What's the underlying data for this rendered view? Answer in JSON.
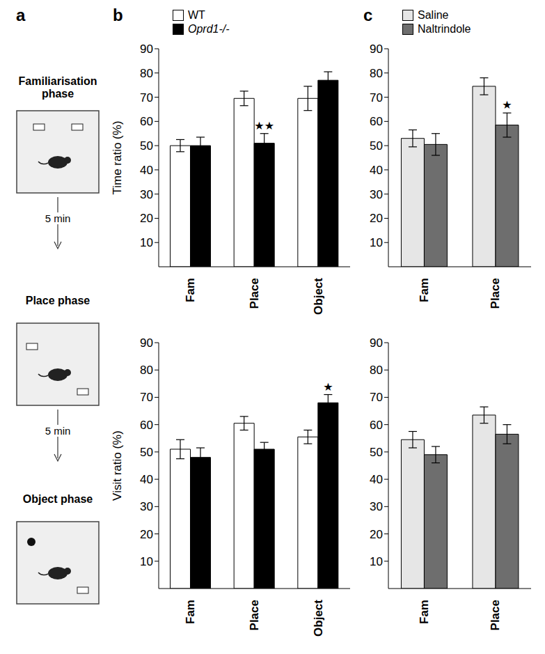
{
  "diagram": {
    "panel": "a",
    "phases": [
      "Familiarisation phase",
      "Place phase",
      "Object phase"
    ],
    "intervals": [
      "5 min",
      "5 min"
    ]
  },
  "chart_data": [
    {
      "panel": "b",
      "type": "bar",
      "ylabel": "Time ratio (%)",
      "categories": [
        "Fam",
        "Place",
        "Object"
      ],
      "series": [
        {
          "name": "WT",
          "color": "#ffffff",
          "values": [
            50,
            69.5,
            69.5
          ],
          "errors": [
            2.5,
            3,
            5
          ]
        },
        {
          "name": "Oprd1-/-",
          "color": "#000000",
          "values": [
            50,
            51,
            77
          ],
          "errors": [
            3.5,
            4,
            3.5
          ]
        }
      ],
      "ylim": [
        0,
        90
      ],
      "yticks": [
        10,
        20,
        30,
        40,
        50,
        60,
        70,
        80,
        90
      ],
      "legend": "upper left",
      "annotations": [
        {
          "series": "Oprd1-/-",
          "category": "Place",
          "text": "★★"
        }
      ]
    },
    {
      "type": "bar",
      "ylabel": "Visit ratio (%)",
      "categories": [
        "Fam",
        "Place",
        "Object"
      ],
      "series": [
        {
          "name": "WT",
          "color": "#ffffff",
          "values": [
            51,
            60.5,
            55.5
          ],
          "errors": [
            3.5,
            2.5,
            2.5
          ]
        },
        {
          "name": "Oprd1-/-",
          "color": "#000000",
          "values": [
            48,
            51,
            68
          ],
          "errors": [
            3.5,
            2.5,
            3
          ]
        }
      ],
      "ylim": [
        0,
        90
      ],
      "yticks": [
        10,
        20,
        30,
        40,
        50,
        60,
        70,
        80,
        90
      ],
      "annotations": [
        {
          "series": "Oprd1-/-",
          "category": "Object",
          "text": "★"
        }
      ]
    },
    {
      "panel": "c",
      "type": "bar",
      "categories": [
        "Fam",
        "Place"
      ],
      "series": [
        {
          "name": "Saline",
          "color": "#e6e6e6",
          "values": [
            53,
            74.5
          ],
          "errors": [
            3.5,
            3.5
          ]
        },
        {
          "name": "Naltrindole",
          "color": "#6e6e6e",
          "values": [
            50.5,
            58.5
          ],
          "errors": [
            4.5,
            5
          ]
        }
      ],
      "ylim": [
        0,
        90
      ],
      "yticks": [
        10,
        20,
        30,
        40,
        50,
        60,
        70,
        80,
        90
      ],
      "legend": "upper left",
      "annotations": [
        {
          "series": "Naltrindole",
          "category": "Place",
          "text": "★"
        }
      ]
    },
    {
      "type": "bar",
      "categories": [
        "Fam",
        "Place"
      ],
      "series": [
        {
          "name": "Saline",
          "color": "#e6e6e6",
          "values": [
            54.5,
            63.5
          ],
          "errors": [
            3,
            3
          ]
        },
        {
          "name": "Naltrindole",
          "color": "#6e6e6e",
          "values": [
            49,
            56.5
          ],
          "errors": [
            3,
            3.5
          ]
        }
      ],
      "ylim": [
        0,
        90
      ],
      "yticks": [
        10,
        20,
        30,
        40,
        50,
        60,
        70,
        80,
        90
      ],
      "annotations": []
    }
  ]
}
